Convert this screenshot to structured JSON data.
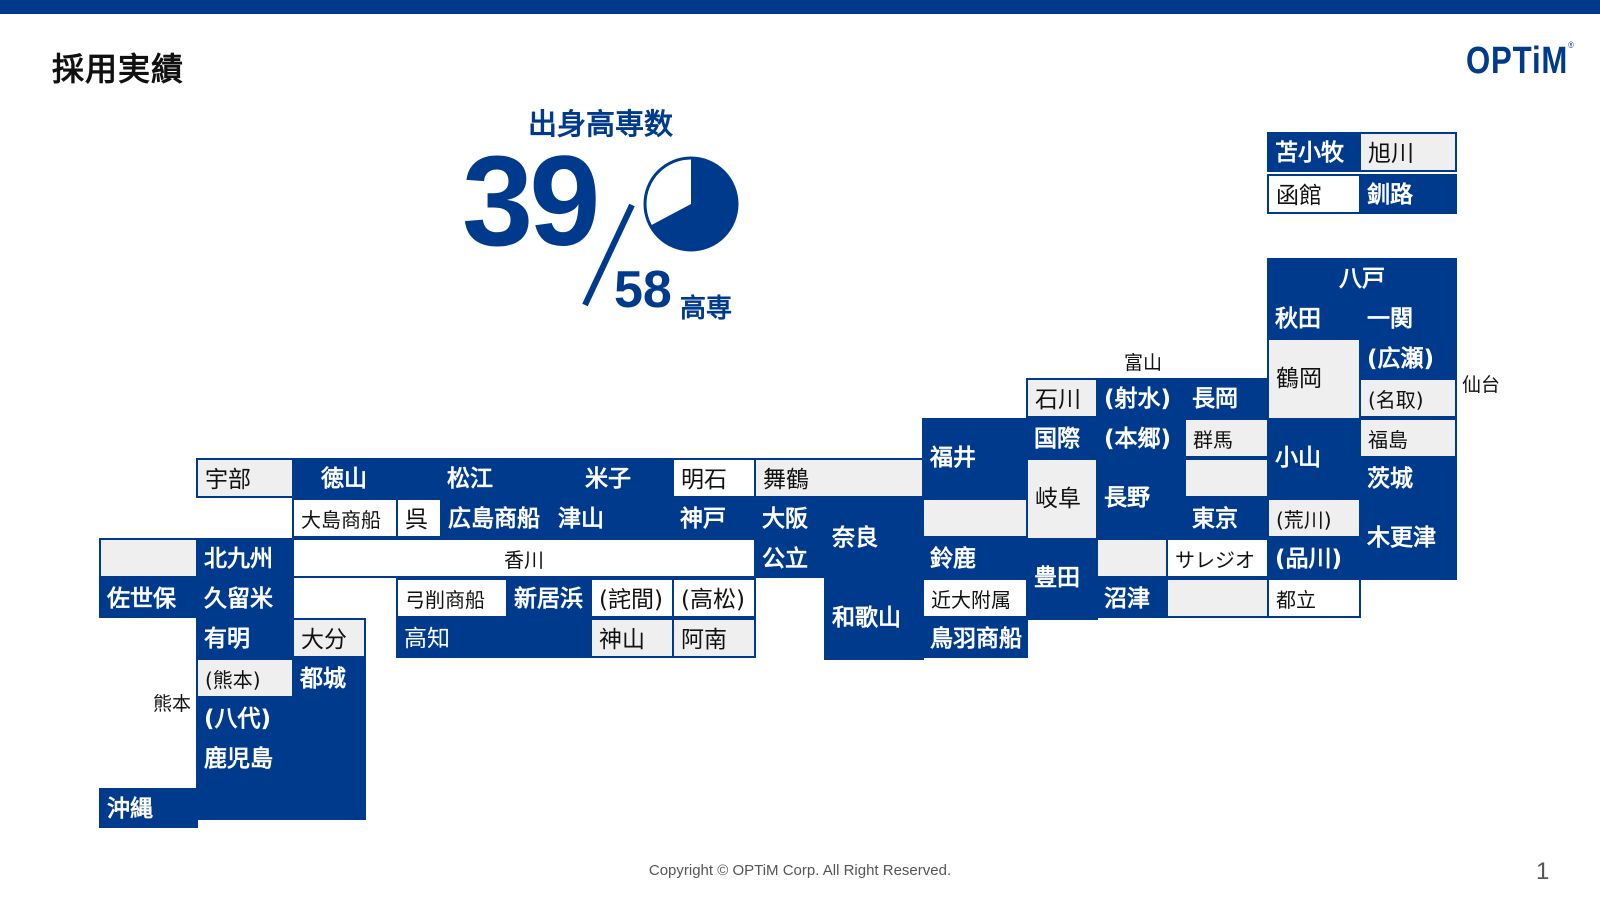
{
  "slide": {
    "title": "採用実績",
    "logo": "OPTiM",
    "logo_mark": "®",
    "footer": "Copyright © OPTiM Corp. All Right Reserved.",
    "page_number": "1",
    "accent_color": "#003a8c"
  },
  "stat": {
    "heading": "出身高専数",
    "count": "39",
    "total": "58",
    "unit": "高専",
    "pie_fraction": 0.672
  },
  "map": {
    "hokkaido": {
      "tomakomai": "苫小牧",
      "asahikawa": "旭川",
      "hakodate": "函館",
      "kushiro": "釧路"
    },
    "tohoku": {
      "hachinohe": "八戸",
      "akita": "秋田",
      "ichinoseki": "一関",
      "tsuruoka": "鶴岡",
      "hirose": "(広瀬)",
      "sendai": "仙台",
      "natori": "(名取)",
      "fukushima": "福島",
      "oyama": "小山",
      "ibaraki": "茨城",
      "arakawa": "(荒川)",
      "kisarazu": "木更津",
      "shinagawa": "(品川)",
      "toritsu": "都立"
    },
    "chubu": {
      "toyama": "富山",
      "ishikawa": "石川",
      "imizu": "(射水)",
      "nagaoka": "長岡",
      "kokusai": "国際",
      "hongo": "(本郷)",
      "gunma": "群馬",
      "fukui": "福井",
      "gifu": "岐阜",
      "nagano": "長野",
      "tokyo": "東京",
      "suzuka": "鈴鹿",
      "toyota": "豊田",
      "salesio": "サレジオ",
      "numazu": "沼津",
      "kindai": "近大附属",
      "toba": "鳥羽商船"
    },
    "kinki": {
      "maizuru": "舞鶴",
      "akashi": "明石",
      "kobe": "神戸",
      "osaka": "大阪",
      "nara": "奈良",
      "koritsu": "公立",
      "wakayama": "和歌山"
    },
    "chugoku_shikoku": {
      "ube": "宇部",
      "tokuyama": "徳山",
      "matsue": "松江",
      "yonago": "米子",
      "oshima": "大島商船",
      "kure": "呉",
      "hiroshima": "広島商船",
      "tsuyama": "津山",
      "kagawa": "香川",
      "yuge": "弓削商船",
      "niihama": "新居浜",
      "takuma": "(詫間)",
      "takamatsu": "(高松)",
      "kochi": "高知",
      "kamiyama": "神山",
      "anan": "阿南"
    },
    "kyushu": {
      "kitakyushu": "北九州",
      "sasebo": "佐世保",
      "kurume": "久留米",
      "ariake": "有明",
      "oita": "大分",
      "kumamoto_label": "熊本",
      "kumamoto": "(熊本)",
      "miyakonojo": "都城",
      "yatsushiro": "(八代)",
      "kagoshima": "鹿児島",
      "okinawa": "沖縄"
    }
  }
}
